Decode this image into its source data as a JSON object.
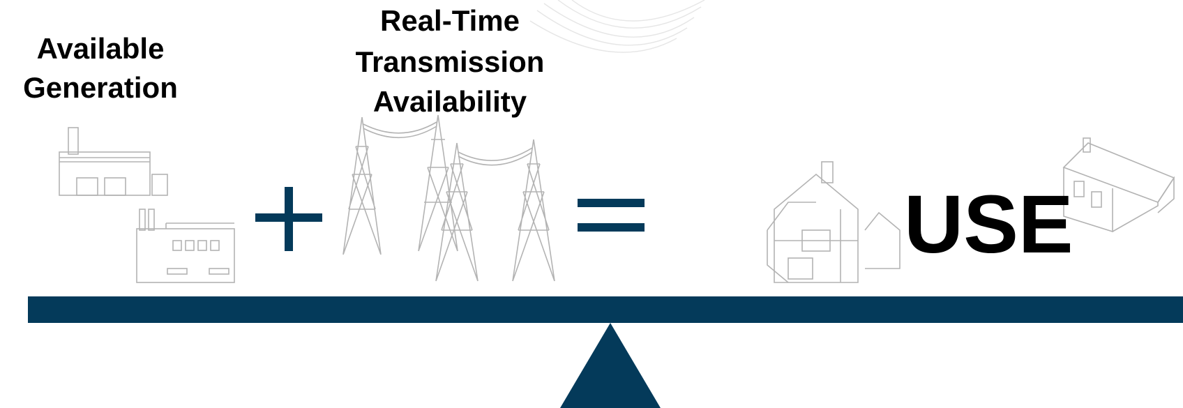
{
  "labels": {
    "generation": [
      "Available",
      "Generation"
    ],
    "transmission": [
      "Real-Time",
      "Transmission",
      "Availability"
    ],
    "use": "USE"
  }
}
